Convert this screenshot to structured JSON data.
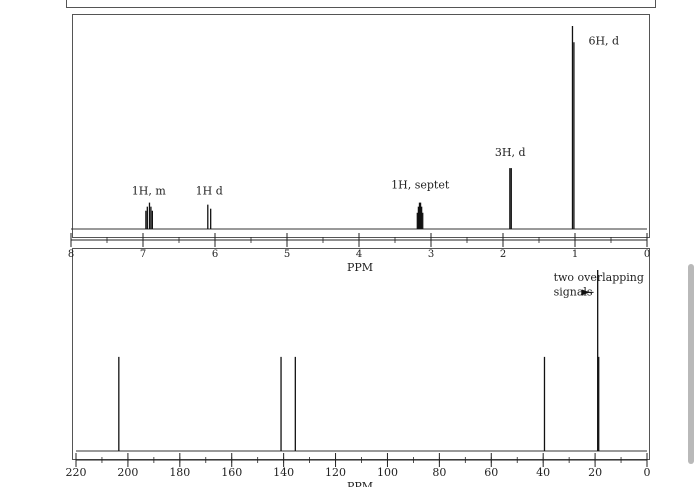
{
  "chart_data": [
    {
      "type": "nmr-stick",
      "xlabel": "PPM",
      "xlim": [
        8,
        0
      ],
      "x_ticks": [
        {
          "label": "8",
          "value": 8
        },
        {
          "label": "7",
          "value": 7
        },
        {
          "label": "6",
          "value": 6
        },
        {
          "label": "5",
          "value": 5
        },
        {
          "label": "4",
          "value": 4
        },
        {
          "label": "3",
          "value": 3
        },
        {
          "label": "2",
          "value": 2
        },
        {
          "label": "1",
          "value": 1
        },
        {
          "label": "0",
          "value": 0
        }
      ],
      "ylim": [
        0,
        1.0
      ],
      "peaks": [
        {
          "x": 6.96,
          "y": 0.09
        },
        {
          "x": 6.94,
          "y": 0.11
        },
        {
          "x": 6.91,
          "y": 0.13
        },
        {
          "x": 6.89,
          "y": 0.11
        },
        {
          "x": 6.87,
          "y": 0.09
        },
        {
          "x": 6.1,
          "y": 0.12
        },
        {
          "x": 6.06,
          "y": 0.1
        },
        {
          "x": 3.19,
          "y": 0.08
        },
        {
          "x": 3.175,
          "y": 0.11
        },
        {
          "x": 3.16,
          "y": 0.13
        },
        {
          "x": 3.145,
          "y": 0.13
        },
        {
          "x": 3.13,
          "y": 0.11
        },
        {
          "x": 3.115,
          "y": 0.08
        },
        {
          "x": 1.905,
          "y": 0.3
        },
        {
          "x": 1.885,
          "y": 0.3
        },
        {
          "x": 1.035,
          "y": 1.0
        },
        {
          "x": 1.015,
          "y": 0.92
        }
      ],
      "annotations": [
        {
          "text": "1H, m",
          "x": 6.92,
          "y": 0.17
        },
        {
          "text": "1H d",
          "x": 6.08,
          "y": 0.17
        },
        {
          "text": "1H, septet",
          "x": 3.15,
          "y": 0.2
        },
        {
          "text": "3H, d",
          "x": 1.9,
          "y": 0.36
        },
        {
          "text": "6H, d",
          "x": 0.6,
          "y": 0.91
        }
      ]
    },
    {
      "type": "nmr-stick",
      "xlabel": "PPM",
      "xlim": [
        220,
        0
      ],
      "x_ticks": [
        {
          "label": "220",
          "value": 220
        },
        {
          "label": "200",
          "value": 200
        },
        {
          "label": "180",
          "value": 180
        },
        {
          "label": "160",
          "value": 160
        },
        {
          "label": "140",
          "value": 140
        },
        {
          "label": "120",
          "value": 120
        },
        {
          "label": "100",
          "value": 100
        },
        {
          "label": "80",
          "value": 80
        },
        {
          "label": "60",
          "value": 60
        },
        {
          "label": "40",
          "value": 40
        },
        {
          "label": "20",
          "value": 20
        },
        {
          "label": "0",
          "value": 0
        }
      ],
      "ylim": [
        0,
        1.0
      ],
      "peaks": [
        {
          "x": 203.5,
          "y": 0.52
        },
        {
          "x": 141.0,
          "y": 0.52
        },
        {
          "x": 135.5,
          "y": 0.52
        },
        {
          "x": 39.5,
          "y": 0.52
        },
        {
          "x": 19.0,
          "y": 1.0
        },
        {
          "x": 18.6,
          "y": 0.52
        }
      ],
      "annotations": [
        {
          "text": "two overlapping",
          "x": 36,
          "y": 0.94
        },
        {
          "text": "signals",
          "x": 36,
          "y": 0.86
        }
      ]
    }
  ]
}
